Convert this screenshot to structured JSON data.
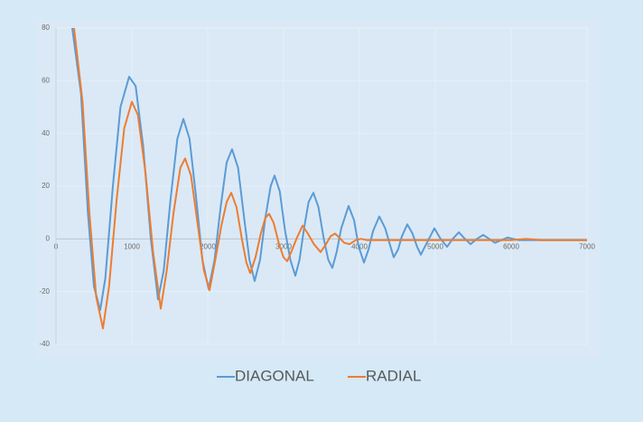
{
  "chart_data": {
    "type": "line",
    "xlim": [
      0,
      7000
    ],
    "xticks": [
      0,
      1000,
      2000,
      3000,
      4000,
      5000,
      6000,
      7000
    ],
    "ylim": [
      -40,
      80
    ],
    "yticks": [
      -40,
      -20,
      0,
      20,
      40,
      60,
      80
    ],
    "grid": true,
    "legend": "bottom",
    "series": [
      {
        "name": "DIAGONAL",
        "color": "#5b9bd5",
        "x": [
          214,
          330,
          420,
          500,
          583,
          650,
          750,
          850,
          964,
          1050,
          1150,
          1250,
          1345,
          1420,
          1510,
          1600,
          1679,
          1760,
          1850,
          1930,
          2012,
          2090,
          2170,
          2250,
          2321,
          2400,
          2480,
          2550,
          2619,
          2690,
          2760,
          2830,
          2881,
          2950,
          3020,
          3090,
          3155,
          3210,
          3270,
          3330,
          3393,
          3460,
          3530,
          3590,
          3643,
          3700,
          3760,
          3857,
          3930,
          3990,
          4060,
          4120,
          4180,
          4262,
          4340,
          4400,
          4452,
          4510,
          4560,
          4631,
          4700,
          4760,
          4810,
          4880,
          4988,
          5070,
          5155,
          5230,
          5310,
          5390,
          5464,
          5550,
          5631,
          5710,
          5786,
          5870,
          5952,
          6100,
          6300,
          6600,
          7000
        ],
        "values": [
          80,
          55,
          10,
          -18,
          -27,
          -15,
          20,
          50,
          61.5,
          58,
          35,
          0,
          -23,
          -12,
          15,
          38,
          45.5,
          38,
          15,
          -8,
          -19,
          -8,
          12,
          29,
          34,
          27,
          8,
          -8,
          -16,
          -8,
          8,
          20,
          24,
          18,
          3,
          -8,
          -14,
          -8,
          4,
          14,
          17.5,
          12,
          0,
          -8,
          -11,
          -5,
          4,
          12.5,
          7,
          -3,
          -9,
          -4,
          3,
          8.5,
          4,
          -2,
          -7,
          -4,
          1,
          5.5,
          2,
          -3,
          -6,
          -2,
          4,
          0,
          -3,
          0,
          2.5,
          0,
          -2,
          0,
          1.5,
          0,
          -1.5,
          -0.5,
          0.5,
          -0.5,
          -0.5,
          -0.5,
          -0.5
        ]
      },
      {
        "name": "RADIAL",
        "color": "#ed7d31",
        "x": [
          238,
          350,
          440,
          530,
          619,
          700,
          800,
          900,
          1000,
          1080,
          1180,
          1280,
          1381,
          1460,
          1550,
          1640,
          1702,
          1780,
          1870,
          1950,
          2024,
          2100,
          2180,
          2250,
          2310,
          2380,
          2450,
          2510,
          2560,
          2630,
          2700,
          2760,
          2810,
          2870,
          2940,
          3000,
          3048,
          3100,
          3170,
          3250,
          3320,
          3400,
          3488,
          3560,
          3620,
          3679,
          3750,
          3800,
          3869,
          3950,
          4020,
          4100,
          4300,
          4600,
          5000,
          5500,
          6000,
          6200,
          6400,
          7000
        ],
        "values": [
          80,
          52,
          10,
          -22,
          -34,
          -18,
          15,
          42,
          52,
          47,
          25,
          -5,
          -26.5,
          -12,
          10,
          27,
          30.5,
          24,
          5,
          -12,
          -19.5,
          -8,
          5,
          14,
          17.5,
          12,
          0,
          -9,
          -13,
          -7,
          2,
          8,
          9.5,
          6,
          -2,
          -7,
          -8.5,
          -5,
          0,
          5,
          2,
          -2,
          -5,
          -2,
          1,
          2,
          0,
          -1.5,
          -2,
          -0.5,
          0,
          -0.5,
          -0.5,
          -0.5,
          -0.5,
          -0.5,
          -0.5,
          0,
          -0.5,
          -0.5
        ]
      }
    ]
  }
}
